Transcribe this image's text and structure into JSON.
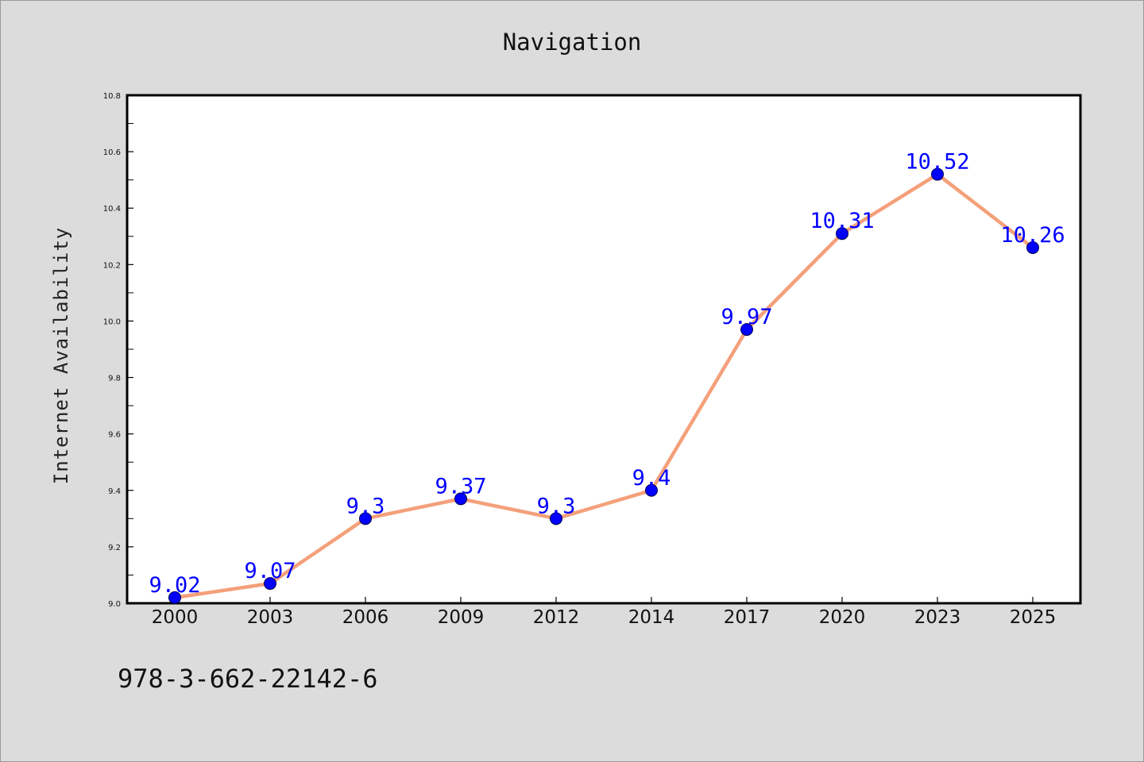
{
  "chart_data": {
    "type": "line",
    "title": "Navigation",
    "xlabel": "",
    "ylabel": "Internet Availability",
    "categories": [
      "2000",
      "2003",
      "2006",
      "2009",
      "2012",
      "2014",
      "2017",
      "2020",
      "2023",
      "2025"
    ],
    "series": [
      {
        "values": [
          9.02,
          9.07,
          9.3,
          9.37,
          9.3,
          9.4,
          9.97,
          10.31,
          10.52,
          10.26
        ],
        "labels": [
          "9.02",
          "9.07",
          "9.3",
          "9.37",
          "9.3",
          "9.4",
          "9.97",
          "10.31",
          "10.52",
          "10.26"
        ],
        "line_color": "#f4a07a",
        "marker_color": "#0000ff"
      }
    ],
    "ylim": [
      9.0,
      10.8
    ],
    "yticks": [
      "9.0",
      "9.2",
      "9.4",
      "9.6",
      "9.8",
      "10.0",
      "10.2",
      "10.4",
      "10.6",
      "10.8"
    ],
    "grid": false,
    "legend": "none"
  },
  "footer": {
    "text": "978-3-662-22142-6"
  }
}
